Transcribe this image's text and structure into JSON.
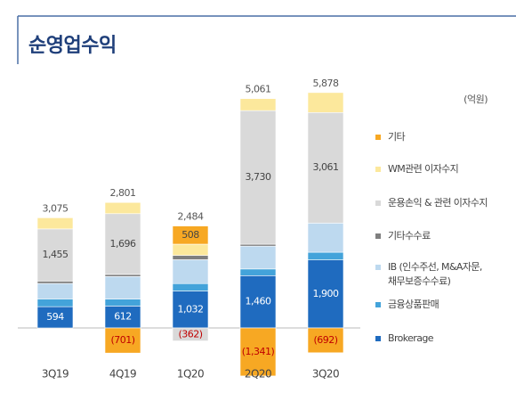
{
  "chart_data": {
    "type": "stacked-bar",
    "title": "순영업수익",
    "unit": "(억원)",
    "categories": [
      "3Q19",
      "4Q19",
      "1Q20",
      "2Q20",
      "3Q20"
    ],
    "totals": [
      3075,
      2801,
      2484,
      5061,
      5878
    ],
    "total_labels": [
      "3,075",
      "2,801",
      "2,484",
      "5,061",
      "5,878"
    ],
    "series": [
      {
        "name": "Brokerage",
        "color": "#1f6bbf",
        "values": [
          594,
          612,
          1032,
          1460,
          1900
        ],
        "value_labels": [
          "594",
          "612",
          "1,032",
          "1,460",
          "1,900"
        ]
      },
      {
        "name": "금융상품판매",
        "color": "#43a3da",
        "values": [
          216,
          193,
          206,
          186,
          213
        ]
      },
      {
        "name": "IB (인수주선, M&A자문, 채무보증수수료)",
        "color": "#bdd9ef",
        "values": [
          432,
          631,
          667,
          638,
          814
        ]
      },
      {
        "name": "기타수수료",
        "color": "#7f7f7f",
        "values": [
          67,
          58,
          121,
          53,
          25
        ]
      },
      {
        "name": "운용손익 & 관련 이자수지",
        "color": "#d9d9d9",
        "values": [
          1455,
          1696,
          -362,
          3730,
          3061
        ],
        "value_labels": [
          "1,455",
          "1,696",
          "(362)",
          "3,730",
          "3,061"
        ]
      },
      {
        "name": "WM관련 이자수지",
        "color": "#fce89c",
        "values": [
          311,
          312,
          312,
          335,
          557
        ]
      },
      {
        "name": "기타",
        "color": "#f7a823",
        "values": [
          null,
          -701,
          508,
          -1341,
          -692
        ],
        "value_labels": [
          null,
          "(701)",
          "508",
          "(1,341)",
          "(692)"
        ]
      }
    ]
  }
}
